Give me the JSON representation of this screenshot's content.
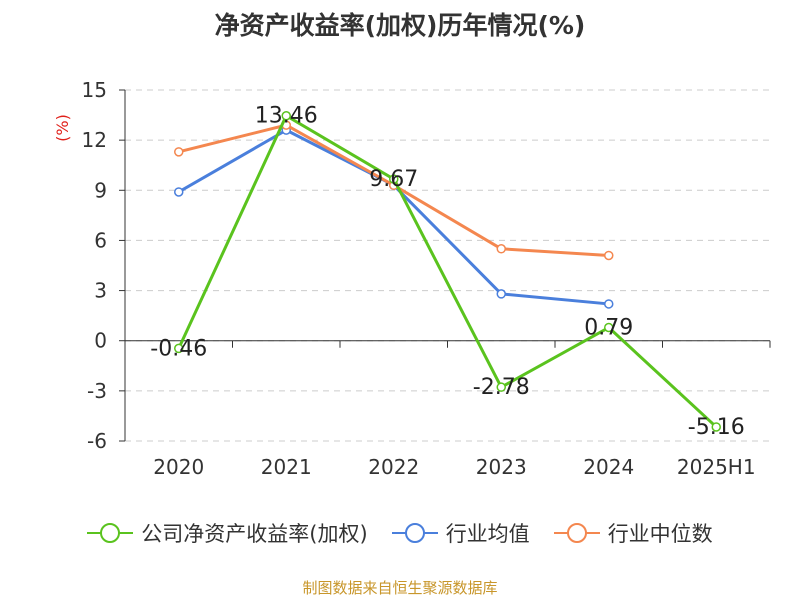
{
  "chart_data": {
    "type": "line",
    "title": "净资产收益率(加权)历年情况(%)",
    "ylabel": "(%)",
    "xlabel": "",
    "categories": [
      "2020",
      "2021",
      "2022",
      "2023",
      "2024",
      "2025H1"
    ],
    "ylim": [
      -6,
      15
    ],
    "yticks": [
      -6,
      -3,
      0,
      3,
      6,
      9,
      12,
      15
    ],
    "grid": true,
    "legend_position": "bottom",
    "series": [
      {
        "name": "公司净资产收益率(加权)",
        "color": "#5ac31e",
        "values": [
          -0.46,
          13.46,
          9.67,
          -2.78,
          0.79,
          -5.16
        ],
        "labels": [
          "-0.46",
          "13.46",
          "9.67",
          "-2.78",
          "0.79",
          "-5.16"
        ],
        "show_labels": true
      },
      {
        "name": "行业均值",
        "color": "#4a7fdc",
        "values": [
          8.9,
          12.6,
          9.3,
          2.8,
          2.2,
          null
        ],
        "show_labels": false
      },
      {
        "name": "行业中位数",
        "color": "#f4874f",
        "values": [
          11.3,
          12.9,
          9.3,
          5.5,
          5.1,
          null
        ],
        "show_labels": false
      }
    ]
  },
  "source": "制图数据来自恒生聚源数据库"
}
